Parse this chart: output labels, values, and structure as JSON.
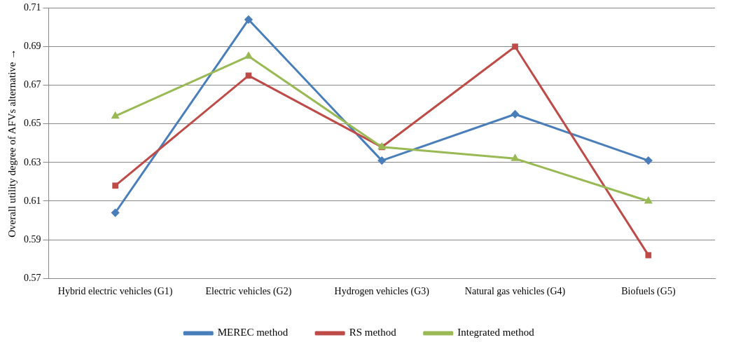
{
  "chart_data": {
    "type": "line",
    "ylabel": "Overall utility degree of AFVs alternative →",
    "categories": [
      "Hybrid electric vehicles (G1)",
      "Electric vehicles (G2)",
      "Hydrogen vehicles (G3)",
      "Natural gas vehicles (G4)",
      "Biofuels (G5)"
    ],
    "series": [
      {
        "name": "MEREC method",
        "color": "#4a7ebb",
        "marker": "diamond",
        "values": [
          0.604,
          0.704,
          0.631,
          0.655,
          0.631
        ]
      },
      {
        "name": "RS method",
        "color": "#be4b48",
        "marker": "square",
        "values": [
          0.618,
          0.675,
          0.638,
          0.69,
          0.582
        ]
      },
      {
        "name": "Integrated method",
        "color": "#98b954",
        "marker": "triangle",
        "values": [
          0.654,
          0.685,
          0.638,
          0.632,
          0.61
        ]
      }
    ],
    "ylim": [
      0.57,
      0.71
    ],
    "yticks": [
      0.57,
      0.59,
      0.61,
      0.63,
      0.65,
      0.67,
      0.69,
      0.71
    ],
    "grid": "y",
    "legend": "bottom"
  }
}
